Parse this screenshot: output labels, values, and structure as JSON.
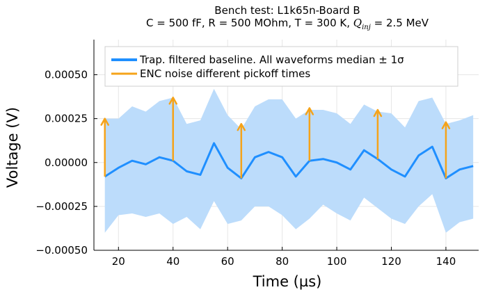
{
  "chart_data": {
    "type": "line",
    "title": "Bench test: L1k65n-Board B",
    "subtitle": {
      "prefix": "C = 500 fF, R = 500 MOhm, T = 300 K, ",
      "q_symbol": "Q",
      "q_subscript": "inj",
      "suffix": " = 2.5 MeV"
    },
    "xlabel": "Time (µs)",
    "ylabel": "Voltage (V)",
    "xlim": [
      11,
      152
    ],
    "ylim": [
      -0.0005,
      0.0007
    ],
    "xticks": [
      20,
      40,
      60,
      80,
      100,
      120,
      140
    ],
    "xtick_labels": [
      "20",
      "40",
      "60",
      "80",
      "100",
      "120",
      "140"
    ],
    "yticks": [
      -0.0005,
      -0.00025,
      0,
      0.00025,
      0.0005
    ],
    "ytick_labels": [
      "−0.00050",
      "−0.00025",
      "0.00000",
      "0.00025",
      "0.00050"
    ],
    "grid": true,
    "legend_position": "top-left",
    "series": [
      {
        "name": "Trap. filtered baseline. All waveforms median ± 1σ",
        "color": "#1f8fff",
        "band_color": "#bcdcfb",
        "x": [
          15,
          20,
          25,
          30,
          35,
          40,
          45,
          50,
          55,
          60,
          65,
          70,
          75,
          80,
          85,
          90,
          95,
          100,
          105,
          110,
          115,
          120,
          125,
          130,
          135,
          140,
          145,
          150
        ],
        "y": [
          -8e-05,
          -3e-05,
          1e-05,
          -1e-05,
          3e-05,
          1e-05,
          -5e-05,
          -7e-05,
          0.00011,
          -3e-05,
          -9e-05,
          3e-05,
          6e-05,
          3e-05,
          -8e-05,
          1e-05,
          2e-05,
          0.0,
          -4e-05,
          7e-05,
          2e-05,
          -4e-05,
          -8e-05,
          4e-05,
          9e-05,
          -9e-05,
          -4e-05,
          -2e-05
        ],
        "upper": [
          0.00025,
          0.00025,
          0.00032,
          0.00029,
          0.00035,
          0.00037,
          0.00022,
          0.00024,
          0.00042,
          0.00027,
          0.00019,
          0.00032,
          0.00036,
          0.00036,
          0.00025,
          0.0003,
          0.0003,
          0.00028,
          0.00022,
          0.00033,
          0.00029,
          0.00028,
          0.0002,
          0.00035,
          0.00037,
          0.00022,
          0.00024,
          0.00027
        ],
        "lower": [
          -0.0004,
          -0.0003,
          -0.00029,
          -0.00031,
          -0.00029,
          -0.00035,
          -0.00031,
          -0.00038,
          -0.00022,
          -0.00035,
          -0.00033,
          -0.00025,
          -0.00025,
          -0.0003,
          -0.00038,
          -0.00032,
          -0.00024,
          -0.00029,
          -0.00033,
          -0.0002,
          -0.00026,
          -0.00032,
          -0.00035,
          -0.00025,
          -0.00018,
          -0.0004,
          -0.00034,
          -0.00032
        ]
      },
      {
        "name": "ENC noise different pickoff times",
        "color": "#f5a31a",
        "type": "arrows",
        "arrows": [
          {
            "x": 15,
            "y_start": -8e-05,
            "y_end": 0.00025
          },
          {
            "x": 40,
            "y_start": 1e-05,
            "y_end": 0.00037
          },
          {
            "x": 65,
            "y_start": -9e-05,
            "y_end": 0.00022
          },
          {
            "x": 90,
            "y_start": 1e-05,
            "y_end": 0.00031
          },
          {
            "x": 115,
            "y_start": 2e-05,
            "y_end": 0.0003
          },
          {
            "x": 140,
            "y_start": -9e-05,
            "y_end": 0.00023
          }
        ]
      }
    ]
  }
}
